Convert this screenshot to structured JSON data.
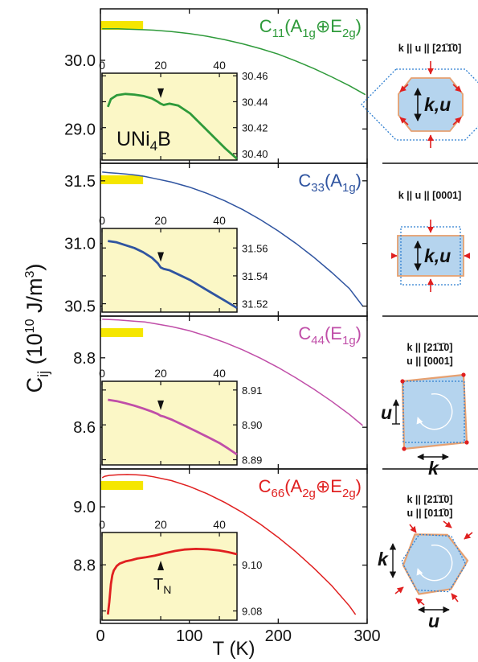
{
  "figure": {
    "ylabel": "C",
    "ylabel_sub": "ij",
    "ylabel_units_pre": " (10",
    "ylabel_units_exp": "10",
    "ylabel_units_mid": " J/m",
    "ylabel_units_exp2": "3",
    "ylabel_units_post": ")",
    "xlabel": "T (K)",
    "tn_label": "T",
    "tn_sub": "N",
    "compound": "UNi",
    "compound_sub": "4",
    "compound_post": "B"
  },
  "colors": {
    "c11": "#2e9a3a",
    "c33": "#2f54a0",
    "c44": "#c04ea8",
    "c66": "#e02020",
    "inset_bg": "#fbf7c6",
    "highlight": "#f5e600",
    "shape_fill": "#b5d4ee",
    "shape_outline": "#e6a070",
    "arrow_red": "#e02020",
    "dashed": "#2f7fd0"
  },
  "chart_data": [
    {
      "type": "line",
      "mode": "C11",
      "label": "C11(A1g⊕E2g)",
      "label_main": "C",
      "label_sub": "11",
      "label_irrep": "(A1g⊕E2g)",
      "irrep_parts": [
        "(A",
        "1g",
        "⊕E",
        "2g",
        ")"
      ],
      "xlim": [
        0,
        300
      ],
      "ylim": [
        28.5,
        30.75
      ],
      "yticks": [
        29.0,
        30.0
      ],
      "ytick_labels": [
        "29.0",
        "30.0"
      ],
      "xticks": [
        0,
        100,
        200,
        300
      ],
      "x": [
        2,
        10,
        20,
        30,
        40,
        50,
        60,
        80,
        100,
        120,
        140,
        160,
        180,
        200,
        220,
        240,
        260,
        280,
        298
      ],
      "y": [
        30.46,
        30.46,
        30.46,
        30.455,
        30.45,
        30.445,
        30.44,
        30.42,
        30.39,
        30.35,
        30.3,
        30.24,
        30.17,
        30.09,
        29.99,
        29.88,
        29.76,
        29.63,
        29.5
      ],
      "inset": {
        "xlim": [
          0,
          46
        ],
        "ylim": [
          30.395,
          30.462
        ],
        "yticks": [
          30.4,
          30.42,
          30.44,
          30.46
        ],
        "ytick_labels": [
          "30.40",
          "30.42",
          "30.44",
          "30.46"
        ],
        "xticks": [
          0,
          20,
          40
        ],
        "xtick_labels": [
          "0",
          "20",
          "40"
        ],
        "x": [
          2,
          3,
          5,
          8,
          11,
          14,
          17,
          19,
          20,
          21,
          23,
          26,
          30,
          34,
          38,
          42,
          46
        ],
        "y": [
          30.436,
          30.442,
          30.445,
          30.446,
          30.4455,
          30.4445,
          30.4425,
          30.44,
          30.4385,
          30.4375,
          30.4385,
          30.437,
          30.431,
          30.422,
          30.413,
          30.404,
          30.396
        ],
        "marker_x": 20,
        "marker_dir": "down"
      },
      "schematic": {
        "k_dir": "k || u || [2",
        "k_overbars": "1̄1̄",
        "k_end": "0]",
        "lines": [
          "k || u || [21̄1̄0]"
        ],
        "center_label": "k,u"
      }
    },
    {
      "type": "line",
      "mode": "C33",
      "label": "C33(A1g)",
      "label_main": "C",
      "label_sub": "33",
      "irrep_parts": [
        "(A",
        "1g",
        ")"
      ],
      "xlim": [
        0,
        300
      ],
      "ylim": [
        30.42,
        31.64
      ],
      "yticks": [
        30.5,
        31.0,
        31.5
      ],
      "ytick_labels": [
        "30.5",
        "31.0",
        "31.5"
      ],
      "xticks": [
        0,
        100,
        200,
        300
      ],
      "x": [
        2,
        10,
        20,
        30,
        40,
        50,
        60,
        80,
        100,
        120,
        140,
        160,
        180,
        200,
        220,
        240,
        260,
        280,
        295
      ],
      "y": [
        31.57,
        31.565,
        31.56,
        31.553,
        31.545,
        31.535,
        31.52,
        31.49,
        31.45,
        31.4,
        31.34,
        31.27,
        31.19,
        31.1,
        31.0,
        30.89,
        30.77,
        30.64,
        30.5
      ],
      "inset": {
        "xlim": [
          0,
          46
        ],
        "ylim": [
          31.514,
          31.574
        ],
        "yticks": [
          31.52,
          31.54,
          31.56
        ],
        "ytick_labels": [
          "31.52",
          "31.54",
          "31.56"
        ],
        "xticks": [
          0,
          20,
          40
        ],
        "xtick_labels": [
          "0",
          "20",
          "40"
        ],
        "x": [
          2,
          5,
          8,
          11,
          14,
          17,
          19,
          20,
          21,
          23,
          26,
          30,
          34,
          38,
          42,
          46
        ],
        "y": [
          31.565,
          31.564,
          31.562,
          31.56,
          31.557,
          31.553,
          31.549,
          31.546,
          31.545,
          31.544,
          31.541,
          31.537,
          31.532,
          31.527,
          31.522,
          31.517
        ],
        "marker_x": 20,
        "marker_dir": "down"
      },
      "schematic": {
        "lines": [
          "k || u || [0001]"
        ],
        "center_label": "k,u"
      }
    },
    {
      "type": "line",
      "mode": "C44",
      "label": "C44(E1g)",
      "label_main": "C",
      "label_sub": "44",
      "irrep_parts": [
        "(E",
        "1g",
        ")"
      ],
      "xlim": [
        0,
        300
      ],
      "ylim": [
        8.48,
        8.92
      ],
      "yticks": [
        8.6,
        8.8
      ],
      "ytick_labels": [
        "8.6",
        "8.8"
      ],
      "xticks": [
        0,
        100,
        200,
        300
      ],
      "x": [
        2,
        10,
        20,
        30,
        40,
        50,
        60,
        80,
        100,
        120,
        140,
        160,
        180,
        200,
        220,
        240,
        260,
        280,
        295
      ],
      "y": [
        8.911,
        8.91,
        8.909,
        8.907,
        8.905,
        8.903,
        8.899,
        8.89,
        8.878,
        8.862,
        8.844,
        8.823,
        8.799,
        8.772,
        8.742,
        8.71,
        8.675,
        8.637,
        8.605
      ],
      "inset": {
        "xlim": [
          0,
          46
        ],
        "ylim": [
          8.8885,
          8.9125
        ],
        "yticks": [
          8.89,
          8.9,
          8.91
        ],
        "ytick_labels": [
          "8.89",
          "8.90",
          "8.91"
        ],
        "xticks": [
          0,
          20,
          40
        ],
        "xtick_labels": [
          "0",
          "20",
          "40"
        ],
        "x": [
          2,
          5,
          8,
          11,
          14,
          17,
          19,
          20,
          21,
          24,
          28,
          32,
          36,
          40,
          43,
          46
        ],
        "y": [
          8.9072,
          8.9068,
          8.9062,
          8.9055,
          8.9047,
          8.9038,
          8.9031,
          8.9026,
          8.9024,
          8.9014,
          8.8998,
          8.8982,
          8.8965,
          8.8948,
          8.8932,
          8.8915
        ],
        "marker_x": 20,
        "marker_dir": "down"
      },
      "schematic": {
        "lines": [
          "k || [21̄1̄0]",
          "u || [0001]"
        ],
        "u_label": "u",
        "k_label": "k"
      }
    },
    {
      "type": "line",
      "mode": "C66",
      "label": "C66(A2g⊕E2g)",
      "label_main": "C",
      "label_sub": "66",
      "irrep_parts": [
        "(A",
        "2g",
        "⊕E",
        "2g",
        ")"
      ],
      "xlim": [
        0,
        300
      ],
      "ylim": [
        8.6,
        9.13
      ],
      "yticks": [
        8.8,
        9.0
      ],
      "ytick_labels": [
        "8.8",
        "9.0"
      ],
      "xticks": [
        0,
        100,
        200,
        300
      ],
      "xtick_labels": [
        "0",
        "100",
        "200",
        "300"
      ],
      "x": [
        2,
        5,
        10,
        20,
        30,
        40,
        50,
        60,
        80,
        100,
        120,
        140,
        160,
        180,
        200,
        220,
        240,
        260,
        280,
        287
      ],
      "y": [
        9.1,
        9.105,
        9.108,
        9.11,
        9.111,
        9.11,
        9.108,
        9.103,
        9.09,
        9.07,
        9.045,
        9.015,
        8.98,
        8.94,
        8.895,
        8.845,
        8.79,
        8.73,
        8.66,
        8.63
      ],
      "inset": {
        "xlim": [
          0,
          46
        ],
        "ylim": [
          9.076,
          9.114
        ],
        "yticks": [
          9.08,
          9.1
        ],
        "ytick_labels": [
          "9.08",
          "9.10"
        ],
        "xticks": [
          0,
          20,
          40
        ],
        "xtick_labels": [
          "0",
          "20",
          "40"
        ],
        "x": [
          2,
          2.5,
          3,
          3.5,
          4,
          5,
          6,
          8,
          10,
          12,
          15,
          18,
          20,
          22,
          25,
          28,
          32,
          36,
          40,
          43,
          46
        ],
        "y": [
          9.0785,
          9.084,
          9.0915,
          9.0955,
          9.0975,
          9.0995,
          9.1005,
          9.1015,
          9.102,
          9.1027,
          9.1033,
          9.104,
          9.1046,
          9.1052,
          9.106,
          9.1066,
          9.1069,
          9.1067,
          9.1062,
          9.1055,
          9.1046
        ],
        "marker_x": 20,
        "marker_dir": "up"
      },
      "schematic": {
        "lines": [
          "k || [21̄1̄0]",
          "u || [011̄0]"
        ],
        "u_label": "u",
        "k_label": "k"
      }
    }
  ]
}
